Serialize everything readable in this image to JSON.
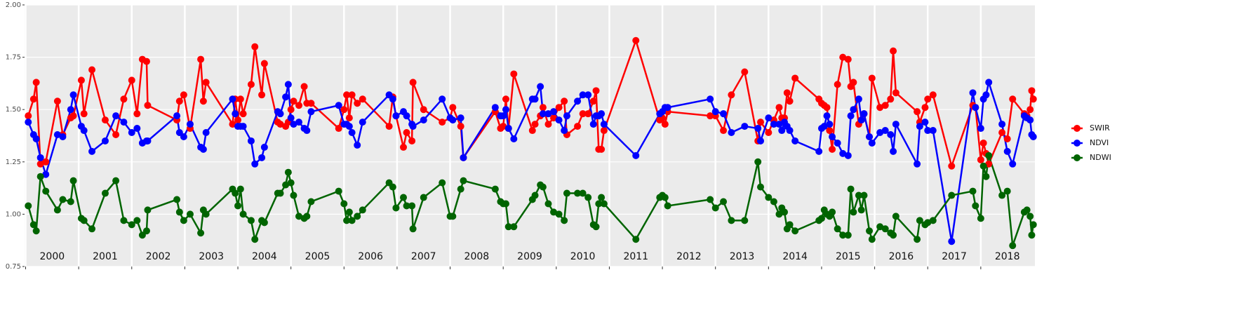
{
  "chart_data": {
    "type": "line",
    "x": [
      2000.05,
      2000.15,
      2000.2,
      2000.28,
      2000.38,
      2000.6,
      2000.7,
      2000.85,
      2000.9,
      2001.05,
      2001.1,
      2001.25,
      2001.5,
      2001.7,
      2001.85,
      2002.0,
      2002.1,
      2002.2,
      2002.28,
      2002.3,
      2002.85,
      2002.9,
      2002.98,
      2003.1,
      2003.3,
      2003.35,
      2003.4,
      2003.9,
      2003.95,
      2004.0,
      2004.05,
      2004.1,
      2004.25,
      2004.32,
      2004.45,
      2004.5,
      2004.75,
      2004.8,
      2004.9,
      2004.95,
      2005.0,
      2005.05,
      2005.15,
      2005.25,
      2005.3,
      2005.38,
      2005.9,
      2006.0,
      2006.05,
      2006.1,
      2006.15,
      2006.25,
      2006.35,
      2006.85,
      2006.92,
      2006.98,
      2007.12,
      2007.18,
      2007.28,
      2007.3,
      2007.5,
      2007.85,
      2008.0,
      2008.05,
      2008.2,
      2008.25,
      2008.85,
      2008.95,
      2009.0,
      2009.05,
      2009.1,
      2009.2,
      2009.55,
      2009.6,
      2009.7,
      2009.75,
      2009.85,
      2009.95,
      2010.05,
      2010.15,
      2010.2,
      2010.4,
      2010.5,
      2010.6,
      2010.7,
      2010.75,
      2010.8,
      2010.85,
      2010.9,
      2011.5,
      2011.95,
      2012.0,
      2012.05,
      2012.1,
      2012.9,
      2013.0,
      2013.15,
      2013.3,
      2013.55,
      2013.8,
      2013.85,
      2014.0,
      2014.1,
      2014.2,
      2014.25,
      2014.3,
      2014.35,
      2014.4,
      2014.5,
      2014.95,
      2015.0,
      2015.05,
      2015.1,
      2015.15,
      2015.2,
      2015.3,
      2015.4,
      2015.5,
      2015.55,
      2015.6,
      2015.7,
      2015.75,
      2015.8,
      2015.9,
      2015.95,
      2016.1,
      2016.2,
      2016.3,
      2016.35,
      2016.4,
      2016.8,
      2016.85,
      2016.95,
      2017.0,
      2017.1,
      2017.45,
      2017.85,
      2017.9,
      2018.0,
      2018.05,
      2018.1,
      2018.15,
      2018.4,
      2018.5,
      2018.6,
      2018.82,
      2018.87,
      2018.93,
      2018.96,
      2018.99
    ],
    "series": [
      {
        "name": "SWIR",
        "color": "#ff0000",
        "values": [
          1.47,
          1.55,
          1.63,
          1.24,
          1.25,
          1.54,
          1.38,
          1.46,
          1.47,
          1.64,
          1.48,
          1.69,
          1.45,
          1.38,
          1.55,
          1.64,
          1.48,
          1.74,
          1.73,
          1.52,
          1.45,
          1.54,
          1.57,
          1.41,
          1.74,
          1.54,
          1.63,
          1.43,
          1.55,
          1.45,
          1.55,
          1.48,
          1.62,
          1.8,
          1.57,
          1.72,
          1.44,
          1.43,
          1.42,
          1.44,
          1.5,
          1.54,
          1.52,
          1.61,
          1.53,
          1.53,
          1.41,
          1.5,
          1.57,
          1.46,
          1.57,
          1.53,
          1.55,
          1.42,
          1.56,
          1.47,
          1.32,
          1.39,
          1.35,
          1.63,
          1.5,
          1.44,
          1.46,
          1.51,
          1.42,
          1.27,
          1.49,
          1.41,
          1.42,
          1.55,
          1.41,
          1.67,
          1.4,
          1.43,
          1.47,
          1.51,
          1.43,
          1.46,
          1.51,
          1.54,
          1.38,
          1.42,
          1.48,
          1.48,
          1.54,
          1.59,
          1.31,
          1.31,
          1.4,
          1.83,
          1.45,
          1.46,
          1.43,
          1.49,
          1.47,
          1.47,
          1.4,
          1.57,
          1.68,
          1.35,
          1.44,
          1.39,
          1.45,
          1.51,
          1.46,
          1.46,
          1.58,
          1.54,
          1.65,
          1.55,
          1.53,
          1.52,
          1.51,
          1.4,
          1.31,
          1.62,
          1.75,
          1.74,
          1.61,
          1.63,
          1.43,
          1.45,
          1.48,
          1.37,
          1.65,
          1.51,
          1.52,
          1.55,
          1.78,
          1.58,
          1.49,
          1.44,
          1.51,
          1.55,
          1.57,
          1.23,
          1.52,
          1.51,
          1.26,
          1.34,
          1.29,
          1.24,
          1.39,
          1.36,
          1.55,
          1.48,
          1.47,
          1.5,
          1.59,
          1.55
        ]
      },
      {
        "name": "NDVI",
        "color": "#0000ff",
        "values": [
          1.44,
          1.38,
          1.36,
          1.27,
          1.19,
          1.38,
          1.37,
          1.5,
          1.57,
          1.42,
          1.4,
          1.3,
          1.35,
          1.47,
          1.44,
          1.39,
          1.41,
          1.34,
          1.35,
          1.35,
          1.47,
          1.39,
          1.37,
          1.43,
          1.32,
          1.31,
          1.39,
          1.55,
          1.48,
          1.42,
          1.42,
          1.42,
          1.35,
          1.24,
          1.27,
          1.32,
          1.49,
          1.48,
          1.56,
          1.62,
          1.46,
          1.43,
          1.44,
          1.41,
          1.4,
          1.49,
          1.52,
          1.43,
          1.43,
          1.42,
          1.39,
          1.33,
          1.44,
          1.57,
          1.55,
          1.47,
          1.49,
          1.47,
          1.43,
          1.42,
          1.45,
          1.55,
          1.46,
          1.45,
          1.46,
          1.27,
          1.51,
          1.47,
          1.47,
          1.5,
          1.41,
          1.36,
          1.55,
          1.55,
          1.61,
          1.48,
          1.48,
          1.49,
          1.45,
          1.4,
          1.47,
          1.54,
          1.57,
          1.57,
          1.43,
          1.47,
          1.47,
          1.48,
          1.43,
          1.28,
          1.48,
          1.49,
          1.51,
          1.51,
          1.55,
          1.49,
          1.48,
          1.39,
          1.42,
          1.41,
          1.35,
          1.46,
          1.43,
          1.43,
          1.4,
          1.44,
          1.42,
          1.4,
          1.35,
          1.3,
          1.41,
          1.42,
          1.47,
          1.43,
          1.37,
          1.34,
          1.29,
          1.28,
          1.47,
          1.5,
          1.55,
          1.45,
          1.48,
          1.37,
          1.34,
          1.39,
          1.4,
          1.38,
          1.3,
          1.43,
          1.24,
          1.42,
          1.44,
          1.4,
          1.4,
          0.87,
          1.58,
          1.51,
          1.41,
          1.55,
          1.57,
          1.63,
          1.43,
          1.3,
          1.24,
          1.47,
          1.46,
          1.45,
          1.38,
          1.37
        ]
      },
      {
        "name": "NDWI",
        "color": "#006400",
        "values": [
          1.04,
          0.95,
          0.92,
          1.18,
          1.11,
          1.02,
          1.07,
          1.06,
          1.16,
          0.98,
          0.97,
          0.93,
          1.1,
          1.16,
          0.97,
          0.95,
          0.97,
          0.9,
          0.92,
          1.02,
          1.07,
          1.01,
          0.97,
          1.0,
          0.91,
          1.02,
          1.0,
          1.12,
          1.1,
          1.04,
          1.12,
          1.0,
          0.97,
          0.88,
          0.97,
          0.96,
          1.1,
          1.1,
          1.14,
          1.2,
          1.15,
          1.09,
          0.99,
          0.98,
          0.99,
          1.06,
          1.11,
          1.05,
          0.97,
          1.01,
          0.97,
          0.99,
          1.02,
          1.15,
          1.13,
          1.03,
          1.08,
          1.04,
          1.04,
          0.93,
          1.08,
          1.15,
          0.99,
          0.99,
          1.12,
          1.16,
          1.12,
          1.06,
          1.05,
          1.05,
          0.94,
          0.94,
          1.07,
          1.09,
          1.14,
          1.13,
          1.05,
          1.01,
          1.0,
          0.97,
          1.1,
          1.1,
          1.1,
          1.08,
          0.95,
          0.94,
          1.05,
          1.08,
          1.05,
          0.88,
          1.08,
          1.09,
          1.08,
          1.04,
          1.07,
          1.03,
          1.06,
          0.97,
          0.97,
          1.25,
          1.13,
          1.08,
          1.06,
          1.0,
          1.03,
          1.01,
          0.93,
          0.95,
          0.92,
          0.97,
          0.98,
          1.02,
          1.0,
          0.99,
          1.01,
          0.93,
          0.9,
          0.9,
          1.12,
          1.01,
          1.09,
          1.02,
          1.09,
          0.92,
          0.88,
          0.94,
          0.93,
          0.91,
          0.9,
          0.99,
          0.88,
          0.97,
          0.95,
          0.96,
          0.97,
          1.09,
          1.11,
          1.04,
          0.98,
          1.23,
          1.18,
          1.28,
          1.09,
          1.11,
          0.85,
          1.01,
          1.02,
          0.99,
          0.9,
          0.95
        ]
      }
    ],
    "xlim": [
      1999.98,
      2019.02
    ],
    "xticks": [
      {
        "value": 2000,
        "label": "2000"
      },
      {
        "value": 2001,
        "label": "2001"
      },
      {
        "value": 2002,
        "label": "2002"
      },
      {
        "value": 2003,
        "label": "2003"
      },
      {
        "value": 2004,
        "label": "2004"
      },
      {
        "value": 2005,
        "label": "2005"
      },
      {
        "value": 2006,
        "label": "2006"
      },
      {
        "value": 2007,
        "label": "2007"
      },
      {
        "value": 2008,
        "label": "2008"
      },
      {
        "value": 2009,
        "label": "2009"
      },
      {
        "value": 2010,
        "label": "2010"
      },
      {
        "value": 2011,
        "label": "2011"
      },
      {
        "value": 2012,
        "label": "2012"
      },
      {
        "value": 2013,
        "label": "2013"
      },
      {
        "value": 2014,
        "label": "2014"
      },
      {
        "value": 2015,
        "label": "2015"
      },
      {
        "value": 2016,
        "label": "2016"
      },
      {
        "value": 2017,
        "label": "2017"
      },
      {
        "value": 2018,
        "label": "2018"
      }
    ],
    "ylim": [
      0.75,
      2.0
    ],
    "yticks": [
      {
        "value": 0.75,
        "label": "0.75"
      },
      {
        "value": 1.0,
        "label": "1.00"
      },
      {
        "value": 1.25,
        "label": "1.25"
      },
      {
        "value": 1.5,
        "label": "1.50"
      },
      {
        "value": 1.75,
        "label": "1.75"
      },
      {
        "value": 2.0,
        "label": "2.00"
      }
    ],
    "grid": true,
    "legend": "right"
  }
}
